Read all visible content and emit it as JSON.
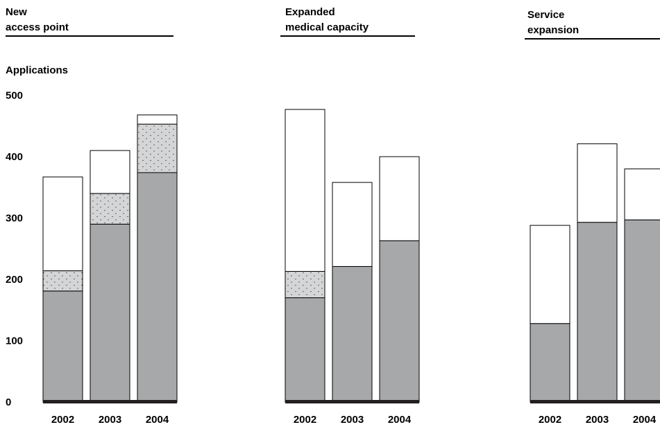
{
  "y_axis_title": "Applications",
  "colors": {
    "base": "#a7a8aa",
    "dotted": "#d4d5d6",
    "top": "#ffffff",
    "baseline": "#231f20",
    "outline": "#000000"
  },
  "chart_data": [
    {
      "type": "bar",
      "stacked": true,
      "title": [
        "New",
        "access point"
      ],
      "categories": [
        "2002",
        "2003",
        "2004"
      ],
      "ylim": [
        0,
        500
      ],
      "yticks": [
        0,
        100,
        200,
        300,
        400,
        500
      ],
      "segments": [
        {
          "fill": "base",
          "values": [
            181,
            290,
            374
          ]
        },
        {
          "fill": "dotted",
          "values": [
            33,
            50,
            79
          ]
        },
        {
          "fill": "top",
          "values": [
            153,
            70,
            15
          ]
        }
      ]
    },
    {
      "type": "bar",
      "stacked": true,
      "title": [
        "Expanded",
        "medical capacity"
      ],
      "categories": [
        "2002",
        "2003",
        "2004"
      ],
      "ylim": [
        0,
        500
      ],
      "segments": [
        {
          "fill": "base",
          "values": [
            170,
            221,
            263
          ]
        },
        {
          "fill": "dotted",
          "values": [
            43,
            0,
            0
          ]
        },
        {
          "fill": "top",
          "values": [
            264,
            137,
            137
          ]
        }
      ]
    },
    {
      "type": "bar",
      "stacked": true,
      "title": [
        "Service",
        "expansion"
      ],
      "categories": [
        "2002",
        "2003",
        "2004"
      ],
      "ylim": [
        0,
        500
      ],
      "segments": [
        {
          "fill": "base",
          "values": [
            128,
            293,
            297
          ]
        },
        {
          "fill": "dotted",
          "values": [
            0,
            0,
            0
          ]
        },
        {
          "fill": "top",
          "values": [
            160,
            128,
            83
          ]
        }
      ]
    }
  ]
}
